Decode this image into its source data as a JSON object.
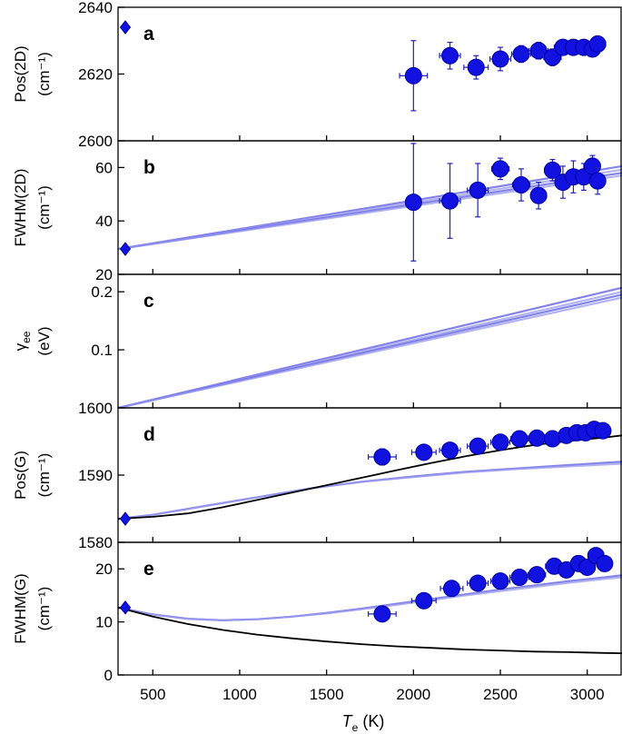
{
  "chart_data": {
    "type": "scatter",
    "colors": {
      "marker": "#1212e0",
      "marker_stroke": "#0000a0",
      "errorbar": "#2323b8",
      "fit_line": "#5a5ae0",
      "fit_line_light": "#9a9af0",
      "model_line": "#000000"
    },
    "xlabel": {
      "italic": "T",
      "sub": "e",
      "rest": " (K)"
    },
    "xlim": [
      300,
      3200
    ],
    "xticks": [
      500,
      1000,
      1500,
      2000,
      2500,
      3000
    ],
    "panels": [
      {
        "letter": "a",
        "ylabel_line1": "Pos(2D)",
        "ylabel_line2": "(cm⁻¹)",
        "ylim": [
          2600,
          2640
        ],
        "yticks": [
          2600,
          2620,
          2640
        ],
        "reference_point": {
          "x": 300,
          "y": 2634
        },
        "points": [
          {
            "x": 2000,
            "y": 2619.5,
            "xerr": 80,
            "yerr": 10.5
          },
          {
            "x": 2210,
            "y": 2625.5,
            "xerr": 60,
            "yerr": 4
          },
          {
            "x": 2360,
            "y": 2622,
            "xerr": 70,
            "yerr": 3.5
          },
          {
            "x": 2500,
            "y": 2624.5,
            "xerr": 60,
            "yerr": 3.5
          },
          {
            "x": 2620,
            "y": 2626,
            "xerr": 55,
            "yerr": 2.5
          },
          {
            "x": 2720,
            "y": 2627,
            "xerr": 55,
            "yerr": 2.5
          },
          {
            "x": 2800,
            "y": 2625,
            "xerr": 50,
            "yerr": 2.5
          },
          {
            "x": 2860,
            "y": 2628,
            "xerr": 50,
            "yerr": 2
          },
          {
            "x": 2920,
            "y": 2628,
            "xerr": 45,
            "yerr": 2
          },
          {
            "x": 2980,
            "y": 2628,
            "xerr": 45,
            "yerr": 2
          },
          {
            "x": 3030,
            "y": 2627.5,
            "xerr": 45,
            "yerr": 2
          },
          {
            "x": 3060,
            "y": 2629,
            "xerr": 45,
            "yerr": 2
          }
        ],
        "fit_lines": [],
        "model_line": []
      },
      {
        "letter": "b",
        "ylabel_line1": "FWHM(2D)",
        "ylabel_line2": "(cm⁻¹)",
        "ylim": [
          20,
          70
        ],
        "yticks": [
          20,
          40,
          60
        ],
        "reference_point": {
          "x": 300,
          "y": 29.5
        },
        "points": [
          {
            "x": 2000,
            "y": 47,
            "xerr": 0,
            "yerr": 22
          },
          {
            "x": 2210,
            "y": 47.5,
            "xerr": 60,
            "yerr": 14
          },
          {
            "x": 2370,
            "y": 51.5,
            "xerr": 60,
            "yerr": 10
          },
          {
            "x": 2500,
            "y": 59.5,
            "xerr": 50,
            "yerr": 4
          },
          {
            "x": 2620,
            "y": 53.5,
            "xerr": 50,
            "yerr": 6
          },
          {
            "x": 2720,
            "y": 49.5,
            "xerr": 45,
            "yerr": 5
          },
          {
            "x": 2800,
            "y": 59,
            "xerr": 45,
            "yerr": 4
          },
          {
            "x": 2860,
            "y": 54.5,
            "xerr": 40,
            "yerr": 6
          },
          {
            "x": 2920,
            "y": 56.5,
            "xerr": 40,
            "yerr": 6
          },
          {
            "x": 2980,
            "y": 56.5,
            "xerr": 40,
            "yerr": 5
          },
          {
            "x": 3030,
            "y": 60.5,
            "xerr": 40,
            "yerr": 4
          },
          {
            "x": 3060,
            "y": 55,
            "xerr": 40,
            "yerr": 5
          }
        ],
        "fit_lines": [
          {
            "x": [
              300,
              3200
            ],
            "y": [
              29.5,
              60.5
            ]
          },
          {
            "x": [
              300,
              3200
            ],
            "y": [
              29.5,
              59.2
            ]
          },
          {
            "x": [
              300,
              3200
            ],
            "y": [
              29.5,
              58.0
            ]
          },
          {
            "x": [
              300,
              3200
            ],
            "y": [
              29.5,
              57.0
            ]
          }
        ],
        "model_line": []
      },
      {
        "letter": "c",
        "ylabel_line1": "γee",
        "ylabel_line2": "(eV)",
        "ylim": [
          0.0,
          0.23
        ],
        "yticks": [
          0.1,
          0.2
        ],
        "ytick_labels": [
          "0.1",
          "0.2"
        ],
        "reference_point": null,
        "points": [],
        "fit_lines": [
          {
            "x": [
              300,
              3200
            ],
            "y": [
              0.0,
              0.207
            ]
          },
          {
            "x": [
              300,
              3200
            ],
            "y": [
              0.0,
              0.2
            ]
          },
          {
            "x": [
              300,
              3200
            ],
            "y": [
              0.0,
              0.195
            ]
          },
          {
            "x": [
              300,
              3200
            ],
            "y": [
              0.0,
              0.19
            ]
          }
        ],
        "model_line": []
      },
      {
        "letter": "d",
        "ylabel_line1": "Pos(G)",
        "ylabel_line2": "(cm⁻¹)",
        "ylim": [
          1580,
          1600
        ],
        "yticks": [
          1580,
          1590,
          1600
        ],
        "reference_point": {
          "x": 300,
          "y": 1583.5
        },
        "points": [
          {
            "x": 1820,
            "y": 1592.7,
            "xerr": 80,
            "yerr": 1.2
          },
          {
            "x": 2060,
            "y": 1593.4,
            "xerr": 70,
            "yerr": 1
          },
          {
            "x": 2210,
            "y": 1593.7,
            "xerr": 60,
            "yerr": 1
          },
          {
            "x": 2370,
            "y": 1594.3,
            "xerr": 60,
            "yerr": 0.9
          },
          {
            "x": 2500,
            "y": 1594.9,
            "xerr": 55,
            "yerr": 0.9
          },
          {
            "x": 2610,
            "y": 1595.4,
            "xerr": 50,
            "yerr": 0.8
          },
          {
            "x": 2710,
            "y": 1595.5,
            "xerr": 50,
            "yerr": 0.8
          },
          {
            "x": 2800,
            "y": 1595.4,
            "xerr": 45,
            "yerr": 0.8
          },
          {
            "x": 2880,
            "y": 1595.9,
            "xerr": 45,
            "yerr": 0.8
          },
          {
            "x": 2940,
            "y": 1596.3,
            "xerr": 45,
            "yerr": 0.8
          },
          {
            "x": 2990,
            "y": 1596.3,
            "xerr": 40,
            "yerr": 0.8
          },
          {
            "x": 3040,
            "y": 1596.8,
            "xerr": 40,
            "yerr": 0.8
          },
          {
            "x": 3090,
            "y": 1596.6,
            "xerr": 40,
            "yerr": 0.8
          }
        ],
        "fit_lines": [
          {
            "x": [
              300,
              500,
              800,
              1100,
              1400,
              1700,
              2000,
              2300,
              2600,
              2900,
              3200
            ],
            "y": [
              1583.5,
              1584.1,
              1585.4,
              1586.7,
              1588.0,
              1589.0,
              1589.8,
              1590.5,
              1591.0,
              1591.5,
              1592.0
            ]
          },
          {
            "x": [
              300,
              500,
              800,
              1100,
              1400,
              1700,
              2000,
              2300,
              2600,
              2900,
              3200
            ],
            "y": [
              1583.5,
              1584.1,
              1585.4,
              1586.7,
              1588.0,
              1589.0,
              1589.7,
              1590.4,
              1590.9,
              1591.3,
              1591.7
            ]
          }
        ],
        "model_line": [
          {
            "x": [
              300,
              500,
              700,
              900,
              1100,
              1300,
              1500,
              1700,
              1900,
              2100,
              2300,
              2500,
              2700,
              2900,
              3100,
              3200
            ],
            "y": [
              1583.5,
              1583.8,
              1584.3,
              1585.2,
              1586.3,
              1587.4,
              1588.5,
              1589.6,
              1590.7,
              1591.8,
              1592.8,
              1593.7,
              1594.5,
              1595.1,
              1595.6,
              1595.9
            ]
          }
        ]
      },
      {
        "letter": "e",
        "ylabel_line1": "FWHM(G)",
        "ylabel_line2": "(cm⁻¹)",
        "ylim": [
          0,
          25
        ],
        "yticks": [
          0,
          10,
          20
        ],
        "reference_point": {
          "x": 300,
          "y": 12.7
        },
        "points": [
          {
            "x": 1820,
            "y": 11.5,
            "xerr": 80,
            "yerr": 1.3
          },
          {
            "x": 2060,
            "y": 14,
            "xerr": 70,
            "yerr": 1.2
          },
          {
            "x": 2220,
            "y": 16.3,
            "xerr": 65,
            "yerr": 1.2
          },
          {
            "x": 2370,
            "y": 17.3,
            "xerr": 60,
            "yerr": 1.1
          },
          {
            "x": 2500,
            "y": 17.7,
            "xerr": 55,
            "yerr": 1.1
          },
          {
            "x": 2610,
            "y": 18.4,
            "xerr": 55,
            "yerr": 1.1
          },
          {
            "x": 2710,
            "y": 18.9,
            "xerr": 50,
            "yerr": 1.1
          },
          {
            "x": 2810,
            "y": 20.5,
            "xerr": 50,
            "yerr": 1.1
          },
          {
            "x": 2880,
            "y": 19.8,
            "xerr": 45,
            "yerr": 1.1
          },
          {
            "x": 2950,
            "y": 21,
            "xerr": 45,
            "yerr": 1.1
          },
          {
            "x": 3000,
            "y": 20.3,
            "xerr": 45,
            "yerr": 1.1
          },
          {
            "x": 3050,
            "y": 22.5,
            "xerr": 45,
            "yerr": 1.1
          },
          {
            "x": 3100,
            "y": 21,
            "xerr": 45,
            "yerr": 1.1
          }
        ],
        "fit_lines": [
          {
            "x": [
              300,
              500,
              700,
              900,
              1100,
              1300,
              1500,
              1700,
              1900,
              2100,
              2300,
              2500,
              2700,
              2900,
              3100,
              3200
            ],
            "y": [
              12.7,
              11.4,
              10.6,
              10.3,
              10.5,
              11.0,
              11.7,
              12.5,
              13.4,
              14.3,
              15.2,
              16.1,
              16.9,
              17.7,
              18.4,
              18.8
            ]
          },
          {
            "x": [
              300,
              500,
              700,
              900,
              1100,
              1300,
              1500,
              1700,
              1900,
              2100,
              2300,
              2500,
              2700,
              2900,
              3100,
              3200
            ],
            "y": [
              12.7,
              11.4,
              10.6,
              10.3,
              10.5,
              11.0,
              11.6,
              12.4,
              13.2,
              14.1,
              15.0,
              15.8,
              16.6,
              17.4,
              18.1,
              18.4
            ]
          }
        ],
        "model_line": [
          {
            "x": [
              300,
              500,
              700,
              900,
              1100,
              1300,
              1500,
              1700,
              1900,
              2100,
              2300,
              2500,
              2700,
              2900,
              3100,
              3200
            ],
            "y": [
              12.7,
              11.0,
              9.6,
              8.5,
              7.6,
              6.9,
              6.3,
              5.8,
              5.4,
              5.1,
              4.8,
              4.6,
              4.4,
              4.3,
              4.15,
              4.1
            ]
          }
        ]
      }
    ]
  }
}
